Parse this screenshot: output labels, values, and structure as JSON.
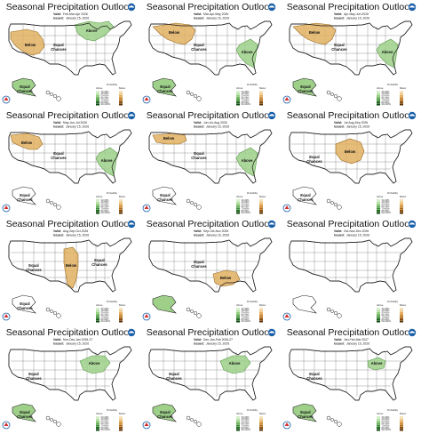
{
  "colors": {
    "above": "#9ed08a",
    "above_stroke": "#5a9a4a",
    "below": "#e2b062",
    "below_dark": "#c98a2e",
    "below_stroke": "#9a6a20",
    "outline": "#222222",
    "noaa_blue": "#1a5fa8",
    "nws_red": "#d23030"
  },
  "panels": [
    {
      "title": "Seasonal Precipitation Outlook",
      "valid_label": "Valid:",
      "valid": "Feb-Mar-Apr 2026",
      "issued_label": "Issued:",
      "issued": "January 15, 2026",
      "areas": [
        {
          "cat": "below",
          "shape": "west_big",
          "label": "Below"
        },
        {
          "cat": "above",
          "shape": "greatlakes",
          "label": "Above"
        }
      ],
      "labels": [
        {
          "text": "Equal",
          "pos": "central"
        },
        {
          "text": "Chances",
          "pos": "central2"
        },
        {
          "text": "Equal",
          "pos": "ak"
        },
        {
          "text": "Chances",
          "pos": "ak2"
        }
      ],
      "ak": "above",
      "hi": "none"
    },
    {
      "title": "Seasonal Precipitation Outlook",
      "valid_label": "Valid:",
      "valid": "Mar-Apr-May 2026",
      "issued_label": "Issued:",
      "issued": "January 15, 2026",
      "areas": [
        {
          "cat": "below",
          "shape": "north_cent",
          "label": "Below"
        },
        {
          "cat": "above",
          "shape": "southeast",
          "label": "Above"
        }
      ],
      "labels": [
        {
          "text": "Equal",
          "pos": "central"
        },
        {
          "text": "Chances",
          "pos": "central2"
        },
        {
          "text": "Equal",
          "pos": "ak"
        },
        {
          "text": "Chances",
          "pos": "ak2"
        }
      ],
      "ak": "above",
      "hi": "none"
    },
    {
      "title": "Seasonal Precipitation Outlook",
      "valid_label": "Valid:",
      "valid": "Apr-May-Jun 2026",
      "issued_label": "Issued:",
      "issued": "January 15, 2026",
      "areas": [
        {
          "cat": "below",
          "shape": "north_cent",
          "label": "Below"
        },
        {
          "cat": "above",
          "shape": "southeast",
          "label": "Above"
        }
      ],
      "labels": [
        {
          "text": "Equal",
          "pos": "central"
        },
        {
          "text": "Chances",
          "pos": "central2"
        },
        {
          "text": "Equal",
          "pos": "ak"
        },
        {
          "text": "Chances",
          "pos": "ak2"
        }
      ],
      "ak": "above",
      "hi": "none"
    },
    {
      "title": "Seasonal Precipitation Outlook",
      "valid_label": "Valid:",
      "valid": "May-Jun-Jul 2026",
      "issued_label": "Issued:",
      "issued": "January 15, 2026",
      "areas": [
        {
          "cat": "below",
          "shape": "northwest",
          "label": "Below"
        },
        {
          "cat": "above",
          "shape": "southeast",
          "label": "Above"
        }
      ],
      "labels": [
        {
          "text": "Equal",
          "pos": "central"
        },
        {
          "text": "Chances",
          "pos": "central2"
        },
        {
          "text": "Equal",
          "pos": "ak"
        },
        {
          "text": "Chances",
          "pos": "ak2"
        }
      ],
      "ak": "none",
      "hi": "none"
    },
    {
      "title": "Seasonal Precipitation Outlook",
      "valid_label": "Valid:",
      "valid": "Jun-Jul-Aug 2026",
      "issued_label": "Issued:",
      "issued": "January 15, 2026",
      "areas": [
        {
          "cat": "below",
          "shape": "northwest_thin",
          "label": "Below"
        },
        {
          "cat": "above",
          "shape": "southeast",
          "label": "Above"
        }
      ],
      "labels": [
        {
          "text": "Equal",
          "pos": "central"
        },
        {
          "text": "Chances",
          "pos": "central2"
        },
        {
          "text": "Equal",
          "pos": "ak"
        },
        {
          "text": "Chances",
          "pos": "ak2"
        }
      ],
      "ak": "none",
      "hi": "none"
    },
    {
      "title": "Seasonal Precipitation Outlook",
      "valid_label": "Valid:",
      "valid": "Jul-Aug-Sep 2026",
      "issued_label": "Issued:",
      "issued": "January 15, 2026",
      "areas": [
        {
          "cat": "below",
          "shape": "plains",
          "label": "Below"
        }
      ],
      "labels": [
        {
          "text": "Equal",
          "pos": "west"
        },
        {
          "text": "Chances",
          "pos": "west2"
        },
        {
          "text": "Equal",
          "pos": "ak"
        },
        {
          "text": "Chances",
          "pos": "ak2"
        }
      ],
      "ak": "none",
      "hi": "none"
    },
    {
      "title": "Seasonal Precipitation Outlook",
      "valid_label": "Valid:",
      "valid": "Aug-Sep-Oct 2026",
      "issued_label": "Issued:",
      "issued": "January 15, 2026",
      "areas": [
        {
          "cat": "below",
          "shape": "mississippi",
          "label": "Below"
        }
      ],
      "labels": [
        {
          "text": "Equal",
          "pos": "west"
        },
        {
          "text": "Chances",
          "pos": "west2"
        },
        {
          "text": "Equal",
          "pos": "east"
        },
        {
          "text": "Chances",
          "pos": "east2"
        },
        {
          "text": "Equal",
          "pos": "ak"
        },
        {
          "text": "Chances",
          "pos": "ak2"
        }
      ],
      "ak": "none",
      "hi": "none"
    },
    {
      "title": "Seasonal Precipitation Outlook",
      "valid_label": "Valid:",
      "valid": "Sep-Oct-Nov 2026",
      "issued_label": "Issued:",
      "issued": "January 15, 2026",
      "areas": [
        {
          "cat": "below",
          "shape": "gulf",
          "label": "Below"
        }
      ],
      "labels": [
        {
          "text": "Equal",
          "pos": "central"
        },
        {
          "text": "Chances",
          "pos": "central2"
        }
      ],
      "ak": "above",
      "hi": "none"
    },
    {
      "title": "Seasonal Precipitation Outlook",
      "valid_label": "Valid:",
      "valid": "Oct-Nov-Dec 2026",
      "issued_label": "Issued:",
      "issued": "January 15, 2026",
      "areas": [],
      "labels": [],
      "ak": "none",
      "hi": "none"
    },
    {
      "title": "Seasonal Precipitation Outlook",
      "valid_label": "Valid:",
      "valid": "Nov-Dec-Jan 2026-27",
      "issued_label": "Issued:",
      "issued": "January 15, 2026",
      "areas": [
        {
          "cat": "above",
          "shape": "ohio",
          "label": "Above"
        }
      ],
      "labels": [
        {
          "text": "Equal",
          "pos": "west"
        },
        {
          "text": "Chances",
          "pos": "west2"
        },
        {
          "text": "Equal",
          "pos": "ak"
        },
        {
          "text": "Chances",
          "pos": "ak2"
        }
      ],
      "ak": "above",
      "hi": "none"
    },
    {
      "title": "Seasonal Precipitation Outlook",
      "valid_label": "Valid:",
      "valid": "Dec-Jan-Feb 2026-27",
      "issued_label": "Issued:",
      "issued": "January 15, 2026",
      "areas": [
        {
          "cat": "above",
          "shape": "ohio",
          "label": "Above"
        }
      ],
      "labels": [
        {
          "text": "Equal",
          "pos": "west"
        },
        {
          "text": "Chances",
          "pos": "west2"
        },
        {
          "text": "Equal",
          "pos": "ak"
        },
        {
          "text": "Chances",
          "pos": "ak2"
        }
      ],
      "ak": "above",
      "hi": "none"
    },
    {
      "title": "Seasonal Precipitation Outlook",
      "valid_label": "Valid:",
      "valid": "Jan-Feb-Mar 2027",
      "issued_label": "Issued:",
      "issued": "January 15, 2026",
      "areas": [
        {
          "cat": "above",
          "shape": "ohio_small",
          "label": "Above"
        }
      ],
      "labels": [
        {
          "text": "Equal",
          "pos": "west"
        },
        {
          "text": "Chances",
          "pos": "west2"
        },
        {
          "text": "Equal",
          "pos": "ak"
        },
        {
          "text": "Chances",
          "pos": "ak2"
        }
      ],
      "ak": "above",
      "hi": "none"
    }
  ],
  "legend": {
    "title": "Probability",
    "above_label": "Above",
    "below_label": "Below",
    "levels": [
      "33-40%",
      "40-50%",
      "50-60%",
      "60-70%",
      "70-80%",
      "80-90%",
      "90-100%"
    ]
  },
  "icons": {
    "noaa": "noaa-logo-icon",
    "nws": "nws-logo-icon"
  }
}
